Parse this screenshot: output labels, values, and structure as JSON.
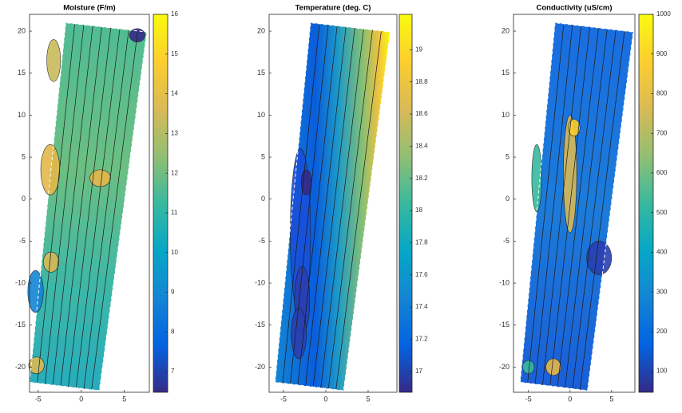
{
  "chart_data": [
    {
      "type": "contour",
      "title": "Moisture (F/m)",
      "xlim": [
        -6,
        7.9
      ],
      "ylim": [
        -23,
        22
      ],
      "xticks": [
        -5,
        0,
        5
      ],
      "yticks": [
        -20,
        -15,
        -10,
        -5,
        0,
        5,
        10,
        15,
        20
      ],
      "clim": [
        6.48,
        16
      ],
      "cticks": [
        7,
        8,
        9,
        10,
        11,
        12,
        13,
        14,
        15,
        16
      ],
      "colormap": [
        "#352a87",
        "#0363e1",
        "#1485d4",
        "#06a7c6",
        "#38b99e",
        "#92bf73",
        "#d9ba56",
        "#fcce2e",
        "#f9fb0e"
      ]
    },
    {
      "type": "contour",
      "title": "Temperature (deg. C)",
      "xlim": [
        -6.7,
        8.4
      ],
      "ylim": [
        -23,
        22
      ],
      "xticks": [
        -5,
        0,
        5
      ],
      "yticks": [
        -20,
        -15,
        -10,
        -5,
        0,
        5,
        10,
        15,
        20
      ],
      "clim": [
        16.87,
        19.22
      ],
      "cticks": [
        17,
        17.2,
        17.4,
        17.6,
        17.8,
        18,
        18.2,
        18.4,
        18.6,
        18.8,
        19
      ],
      "colormap": [
        "#352a87",
        "#0363e1",
        "#1485d4",
        "#06a7c6",
        "#38b99e",
        "#92bf73",
        "#d9ba56",
        "#fcce2e",
        "#f9fb0e"
      ]
    },
    {
      "type": "contour",
      "title": "Conductivity (uS/cm)",
      "xlim": [
        -6.8,
        7.8
      ],
      "ylim": [
        -23,
        22
      ],
      "xticks": [
        -5,
        0,
        5
      ],
      "yticks": [
        -20,
        -15,
        -10,
        -5,
        0,
        5,
        10,
        15,
        20
      ],
      "clim": [
        47,
        1000
      ],
      "cticks": [
        100,
        200,
        300,
        400,
        500,
        600,
        700,
        800,
        900,
        1000
      ],
      "colormap": [
        "#352a87",
        "#0363e1",
        "#1485d4",
        "#06a7c6",
        "#38b99e",
        "#92bf73",
        "#d9ba56",
        "#fcce2e",
        "#f9fb0e"
      ]
    }
  ]
}
